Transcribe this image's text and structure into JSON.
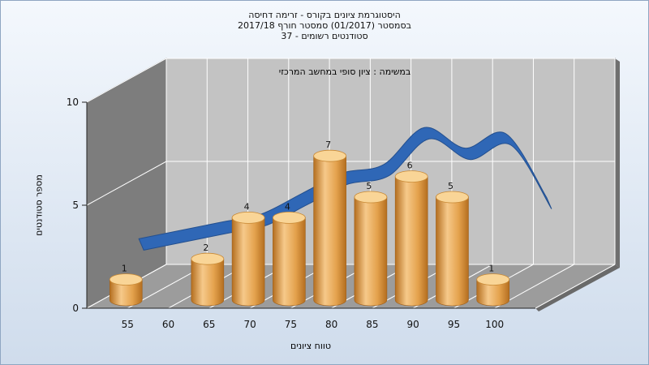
{
  "chart_data": {
    "type": "bar",
    "title_lines": [
      "היסטוגרמת ציונים בקורס - זרימה דחיסה",
      "בסמסטר  (01/2017)  סמסטר חורף 2017/18",
      "סטודנטים רשומים - 37"
    ],
    "subtitle": "במשימה : ציון סופי במחשב המרכזי",
    "xlabel": "טווח ציונים",
    "ylabel": "מספר סטודנטים",
    "categories": [
      "55",
      "60",
      "65",
      "70",
      "75",
      "80",
      "85",
      "90",
      "95",
      "100"
    ],
    "values": [
      1,
      0,
      2,
      4,
      4,
      7,
      5,
      6,
      5,
      1
    ],
    "value_labels": [
      "1",
      "",
      "2",
      "4",
      "4",
      "7",
      "5",
      "6",
      "5",
      "1"
    ],
    "y_ticks": [
      "0",
      "5",
      "10"
    ],
    "ylim": [
      0,
      10
    ],
    "grid": true,
    "curve_series": {
      "x": [
        50,
        55,
        60,
        65,
        70,
        75,
        80,
        85,
        90,
        95,
        100
      ],
      "y": [
        2.2,
        2.6,
        3.0,
        3.4,
        4.4,
        5.4,
        5.8,
        7.6,
        6.6,
        7.3,
        4.2
      ]
    },
    "colors": {
      "bar_light": "#f6c98a",
      "bar_mid": "#e4a24d",
      "bar_dark": "#b46e1f",
      "bar_top": "#f9d597",
      "curve": "#2f67b6",
      "curve_dark": "#24508f",
      "wall_left": "#7d7d7d",
      "wall_back": "#c3c3c3",
      "floor": "#9c9c9c",
      "grid": "#ffffff"
    }
  }
}
